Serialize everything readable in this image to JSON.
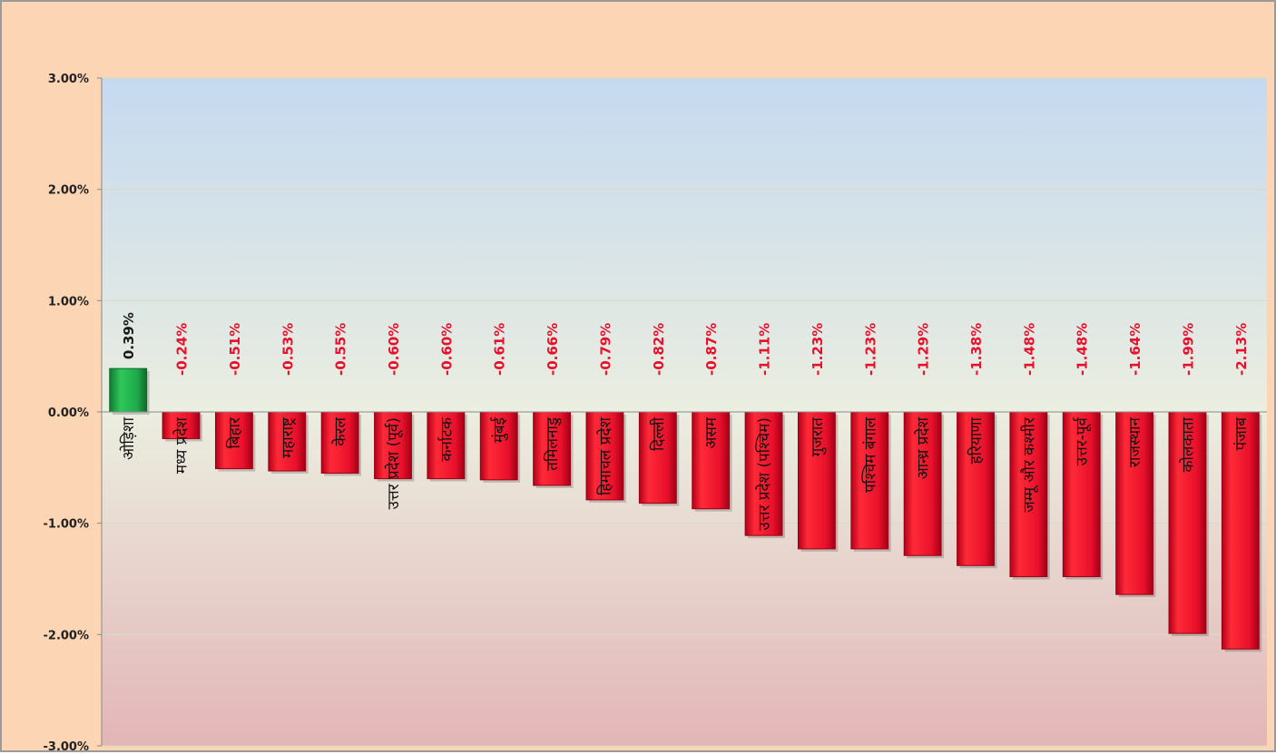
{
  "chart_data": {
    "type": "bar",
    "categories": [
      "ओड़िशा",
      "मध्य प्रदेश",
      "बिहार",
      "महाराष्ट्र",
      "केरल",
      "उत्तर प्रदेश (पूर्व)",
      "कर्नाटक",
      "मुंबई",
      "तमिलनाडु",
      "हिमाचल प्रदेश",
      "दिल्ली",
      "असम",
      "उत्तर प्रदेश (पश्चिम)",
      "गुजरात",
      "पश्चिम बंगाल",
      "आन्ध्र प्रदेश",
      "हरियाणा",
      "जम्मू और कश्मीर",
      "उत्तर-पूर्व",
      "राजस्थान",
      "कोलकाता",
      "पंजाब"
    ],
    "values": [
      0.39,
      -0.24,
      -0.51,
      -0.53,
      -0.55,
      -0.6,
      -0.6,
      -0.61,
      -0.66,
      -0.79,
      -0.82,
      -0.87,
      -1.11,
      -1.23,
      -1.23,
      -1.29,
      -1.38,
      -1.48,
      -1.48,
      -1.64,
      -1.99,
      -2.13
    ],
    "value_labels": [
      "0.39%",
      "-0.24%",
      "-0.51%",
      "-0.53%",
      "-0.55%",
      "-0.60%",
      "-0.60%",
      "-0.61%",
      "-0.66%",
      "-0.79%",
      "-0.82%",
      "-0.87%",
      "-1.11%",
      "-1.23%",
      "-1.23%",
      "-1.29%",
      "-1.38%",
      "-1.48%",
      "-1.48%",
      "-1.64%",
      "-1.99%",
      "-2.13%"
    ],
    "y_ticks": [
      "3.00%",
      "2.00%",
      "1.00%",
      "0.00%",
      "-1.00%",
      "-2.00%",
      "-3.00%"
    ],
    "ylim": [
      -3,
      3
    ],
    "grid": true,
    "legend": "none",
    "title": "",
    "xlabel": "",
    "ylabel": "",
    "colors": {
      "positive": "#1fa84a",
      "negative": "#e8102b",
      "negative_label": "#e8102b",
      "positive_label": "#1a1a1a",
      "page_bg": "#fbd5b4"
    }
  }
}
